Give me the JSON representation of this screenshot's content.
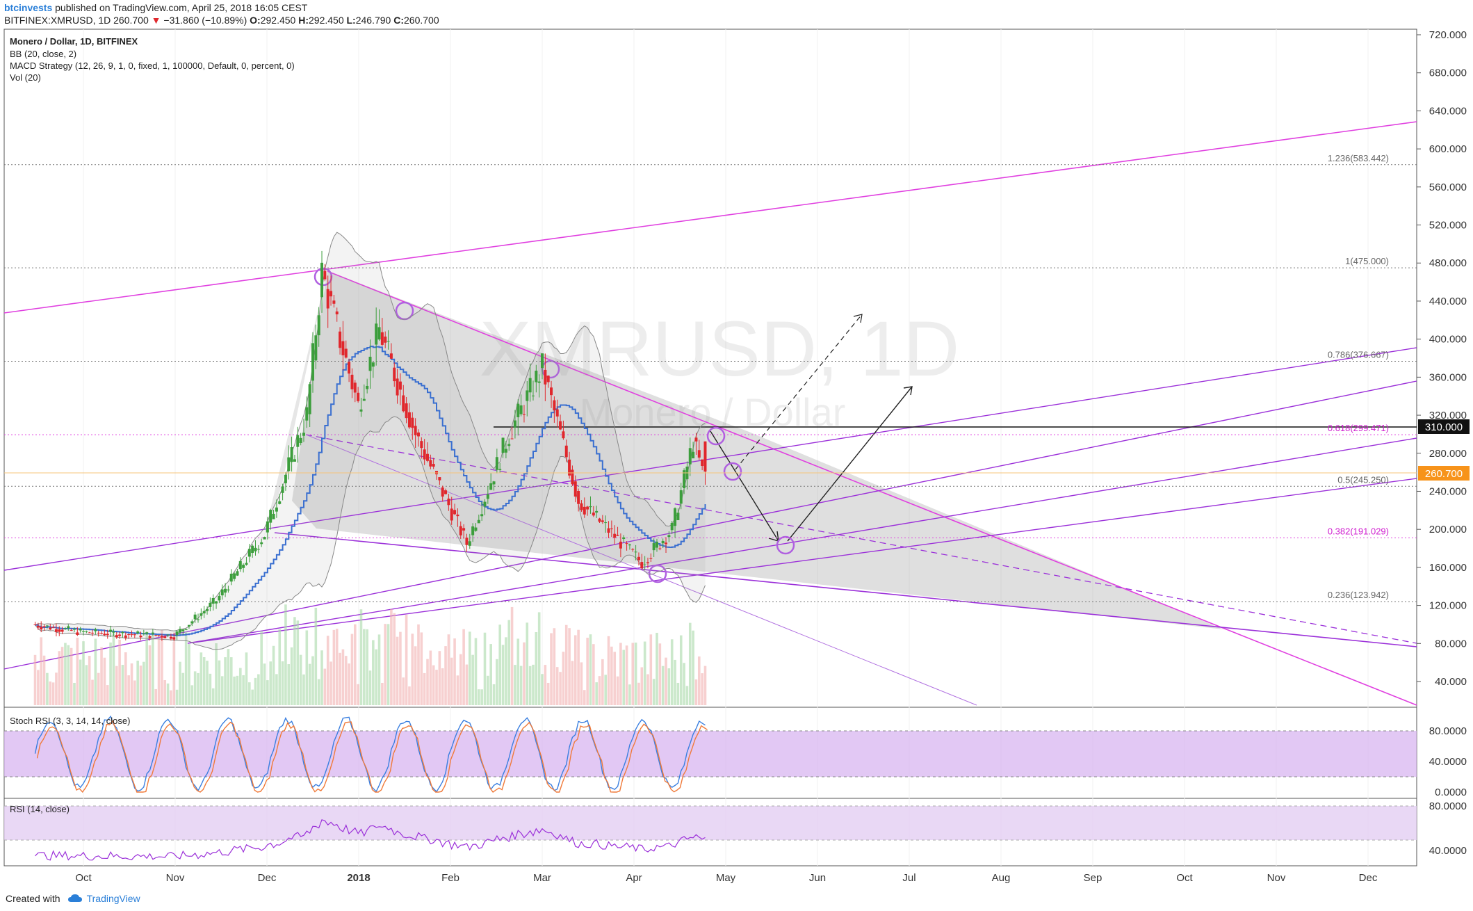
{
  "header": {
    "author": "btcinvests",
    "published_text": "published on TradingView.com, April 25, 2018 16:05 CEST",
    "symbol_line": "BITFINEX:XMRUSD, 1D",
    "last": "260.700",
    "change": "−31.860 (−10.89%)",
    "o_label": "O:",
    "o_val": "292.450",
    "h_label": "H:",
    "h_val": "292.450",
    "l_label": "L:",
    "l_val": "246.790",
    "c_label": "C:",
    "c_val": "260.700"
  },
  "legend": {
    "title": "Monero / Dollar, 1D, BITFINEX",
    "bb": "BB (20, close, 2)",
    "macd": "MACD Strategy (12, 26, 9, 1, 0, fixed, 1, 100000, Default, 0, percent, 0)",
    "vol": "Vol (20)"
  },
  "watermark": {
    "symbol": "XMRUSD, 1D",
    "name": "Monero / Dollar"
  },
  "price_axis": [
    "720.000",
    "680.000",
    "640.000",
    "600.000",
    "560.000",
    "520.000",
    "480.000",
    "440.000",
    "400.000",
    "360.000",
    "320.000",
    "280.000",
    "240.000",
    "200.000",
    "160.000",
    "120.000",
    "80.000",
    "40.000"
  ],
  "price_markers": {
    "level": "310.000",
    "last": "260.700"
  },
  "fib_labels": [
    "1.236(583.442)",
    "1(475.000)",
    "0.786(376.667)",
    "0.618(299.471)",
    "0.5(245.250)",
    "0.382(191.029)",
    "0.236(123.942)"
  ],
  "stoch": {
    "title": "Stoch RSI (3, 3, 14, 14, close)",
    "axis": [
      "80.0000",
      "40.0000",
      "0.0000"
    ]
  },
  "rsi": {
    "title": "RSI (14, close)",
    "axis": [
      "80.0000",
      "40.0000"
    ]
  },
  "time_axis": [
    "Oct",
    "Nov",
    "Dec",
    "2018",
    "Feb",
    "Mar",
    "Apr",
    "May",
    "Jun",
    "Jul",
    "Aug",
    "Sep",
    "Oct",
    "Nov",
    "Dec"
  ],
  "footer": {
    "created_with": "Created with",
    "brand": "TradingView"
  },
  "colors": {
    "up": "#3c9e3c",
    "down": "#e0272c",
    "fib_magenta": "#e040e0",
    "channel": "#9b30d9",
    "last_price": "#f7931a",
    "bb_mid": "#3a6fd0"
  },
  "chart_data": {
    "type": "candlestick",
    "symbol": "BITFINEX:XMRUSD",
    "timeframe": "1D",
    "ylim": [
      0,
      720
    ],
    "fib_levels": [
      {
        "ratio": 1.236,
        "price": 583.442
      },
      {
        "ratio": 1,
        "price": 475.0
      },
      {
        "ratio": 0.786,
        "price": 376.667
      },
      {
        "ratio": 0.618,
        "price": 299.471
      },
      {
        "ratio": 0.5,
        "price": 245.25
      },
      {
        "ratio": 0.382,
        "price": 191.029
      },
      {
        "ratio": 0.236,
        "price": 123.942
      }
    ],
    "horizontal_level": 310.0,
    "last_price": 260.7,
    "ohlc_last": {
      "open": 292.45,
      "high": 292.45,
      "low": 246.79,
      "close": 260.7
    },
    "price_path_approx": [
      {
        "date": "2017-09-15",
        "close": 100
      },
      {
        "date": "2017-10-01",
        "close": 92
      },
      {
        "date": "2017-10-15",
        "close": 90
      },
      {
        "date": "2017-11-01",
        "close": 88
      },
      {
        "date": "2017-11-15",
        "close": 125
      },
      {
        "date": "2017-12-01",
        "close": 195
      },
      {
        "date": "2017-12-15",
        "close": 320
      },
      {
        "date": "2017-12-20",
        "close": 470
      },
      {
        "date": "2018-01-01",
        "close": 330
      },
      {
        "date": "2018-01-08",
        "close": 410
      },
      {
        "date": "2018-01-20",
        "close": 300
      },
      {
        "date": "2018-02-06",
        "close": 185
      },
      {
        "date": "2018-02-20",
        "close": 300
      },
      {
        "date": "2018-03-03",
        "close": 370
      },
      {
        "date": "2018-03-15",
        "close": 230
      },
      {
        "date": "2018-04-05",
        "close": 165
      },
      {
        "date": "2018-04-15",
        "close": 200
      },
      {
        "date": "2018-04-22",
        "close": 292
      },
      {
        "date": "2018-04-25",
        "close": 260.7
      }
    ]
  }
}
